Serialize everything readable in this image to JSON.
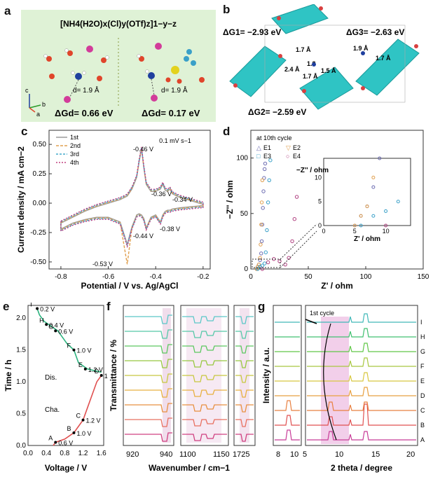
{
  "panel_labels": {
    "a": "a",
    "b": "b",
    "c": "c",
    "d": "d",
    "e": "e",
    "f": "f",
    "g": "g"
  },
  "panel_a": {
    "formula": "[NH4(H2O)x(Cl)y(OTf)z]1−y−z",
    "left": {
      "distance": "d= 1.9 Å",
      "dg": "ΔGd= 0.66 eV"
    },
    "right": {
      "distance": "d= 1.9 Å",
      "dg": "ΔGd= 0.17 eV"
    },
    "axes": {
      "c": "c",
      "b": "b",
      "a": "a"
    },
    "colors": {
      "background": "#dff2d6",
      "oxygen": "#e0452b",
      "hydrogen": "#ffffff",
      "nitrogen": "#1f3f9e",
      "chlorine": "#d23c9a",
      "sulfur": "#e3d21d",
      "fluorine": "#3aa0c8"
    }
  },
  "panel_b": {
    "dg1": "ΔG1= −2.93 eV",
    "dg2": "ΔG2= −2.59 eV",
    "dg3": "ΔG3= −2.63 eV",
    "distances": [
      "1.7 Å",
      "1.8",
      "2.4 Å",
      "1.7 Å",
      "1.5 Å",
      "1.9 Å",
      "1.7 Å"
    ],
    "colors": {
      "framework": "#2fc4c4",
      "carbonyl": "#d94040"
    }
  },
  "chart_data": [
    {
      "id": "c",
      "type": "line",
      "xlabel": "Potential / V vs. Ag/AgCl",
      "ylabel": "Current density / mA cm−2",
      "xlim": [
        -0.85,
        -0.17
      ],
      "ylim": [
        -0.56,
        0.62
      ],
      "xticks": [
        "-0.8",
        "-0.6",
        "-0.4",
        "-0.2"
      ],
      "yticks": [
        "-0.50",
        "-0.25",
        "0.00",
        "0.25",
        "0.50"
      ],
      "scan_rate": "0.1 mV s−1",
      "series": [
        {
          "name": "1st"
        },
        {
          "name": "2nd"
        },
        {
          "name": "3rd"
        },
        {
          "name": "4th"
        }
      ],
      "annotations": [
        "-0.46 V",
        "-0.36 V",
        "-0.34 V",
        "-0.44 V",
        "-0.38 V",
        "-0.53 V"
      ],
      "x": [
        -0.8,
        -0.75,
        -0.7,
        -0.65,
        -0.6,
        -0.55,
        -0.52,
        -0.5,
        -0.48,
        -0.47,
        -0.46,
        -0.45,
        -0.44,
        -0.42,
        -0.4,
        -0.38,
        -0.37,
        -0.36,
        -0.35,
        -0.34,
        -0.33,
        -0.3,
        -0.25,
        -0.2
      ],
      "anodic": [
        -0.17,
        -0.12,
        -0.07,
        -0.03,
        0.0,
        0.03,
        0.06,
        0.12,
        0.22,
        0.35,
        0.46,
        0.3,
        0.16,
        0.1,
        0.1,
        0.12,
        0.16,
        0.11,
        0.1,
        0.12,
        0.08,
        0.05,
        0.02,
        -0.01
      ],
      "cathodic": [
        -0.22,
        -0.17,
        -0.14,
        -0.12,
        -0.12,
        -0.16,
        -0.35,
        -0.2,
        -0.1,
        -0.09,
        -0.1,
        -0.13,
        -0.21,
        -0.12,
        -0.1,
        -0.16,
        -0.1,
        -0.07,
        -0.06,
        -0.06,
        -0.05,
        -0.04,
        -0.03,
        -0.02
      ],
      "colors": [
        "#9a9a9a",
        "#e0a050",
        "#44aacc",
        "#c04080"
      ]
    },
    {
      "id": "d",
      "type": "scatter",
      "xlabel": "Z' / ohm",
      "ylabel": "−Z'' / ohm",
      "xlim": [
        0,
        150
      ],
      "ylim": [
        0,
        125
      ],
      "xticks": [
        "0",
        "50",
        "100",
        "150"
      ],
      "yticks": [
        "0",
        "50",
        "100"
      ],
      "note": "at 10th cycle",
      "series": [
        {
          "name": "E1",
          "color": "#6a6ab0",
          "z_re": [
            5,
            6,
            7,
            8,
            9,
            9.5,
            10,
            10.5,
            11,
            11.5,
            12,
            12.5
          ],
          "z_im": [
            0,
            2,
            4,
            8,
            14,
            25,
            40,
            55,
            70,
            82,
            90,
            95
          ]
        },
        {
          "name": "E2",
          "color": "#e0a050",
          "z_re": [
            5,
            6,
            7,
            8,
            8.5,
            9,
            9.5,
            10
          ],
          "z_im": [
            0,
            2,
            4,
            10,
            22,
            40,
            60,
            80
          ]
        },
        {
          "name": "E3",
          "color": "#3aa0c8",
          "z_re": [
            6,
            8,
            10,
            12,
            13,
            14,
            15,
            16,
            17
          ],
          "z_im": [
            0,
            2,
            3,
            5,
            15,
            35,
            60,
            80,
            98
          ]
        },
        {
          "name": "E4",
          "color": "#b04080",
          "z_re": [
            10,
            15,
            20,
            25,
            30,
            33,
            36,
            38,
            40
          ],
          "z_im": [
            0,
            6,
            9,
            7,
            4,
            10,
            25,
            45,
            65
          ]
        }
      ],
      "inset": {
        "xlim": [
          0,
          14
        ],
        "ylim": [
          0,
          14
        ],
        "xticks": [
          "0",
          "5",
          "10"
        ],
        "yticks": [
          "0",
          "5",
          "10"
        ],
        "xlabel": "Z' / ohm",
        "ylabel": "−Z'' / ohm"
      }
    },
    {
      "id": "e",
      "type": "line",
      "xlabel": "Voltage / V",
      "ylabel": "Time / h",
      "xlim": [
        0,
        1.65
      ],
      "ylim": [
        0,
        2.2
      ],
      "xticks": [
        "0.0",
        "0.4",
        "0.8",
        "1.2",
        "1.6"
      ],
      "yticks": [
        "0.0",
        "0.5",
        "1.0",
        "1.5",
        "2.0"
      ],
      "discharge": {
        "label": "Dis.",
        "voltage": [
          1.6,
          1.3,
          1.1,
          1.0,
          0.85,
          0.75,
          0.65,
          0.55,
          0.45,
          0.35,
          0.25,
          0.2
        ],
        "time": [
          1.15,
          1.2,
          1.3,
          1.5,
          1.6,
          1.7,
          1.8,
          1.85,
          1.9,
          1.95,
          2.05,
          2.15
        ],
        "color": "#2db37f"
      },
      "charge": {
        "label": "Cha.",
        "voltage": [
          0.55,
          0.6,
          0.8,
          1.0,
          1.1,
          1.2,
          1.25,
          1.3,
          1.4,
          1.5,
          1.6
        ],
        "time": [
          0.0,
          0.05,
          0.1,
          0.2,
          0.3,
          0.4,
          0.5,
          0.6,
          0.8,
          1.0,
          1.1
        ],
        "color": "#e05050"
      },
      "points": [
        {
          "label": "A",
          "note": "0.6 V",
          "v": 0.6,
          "t": 0.05
        },
        {
          "label": "B",
          "note": "1.0 V",
          "v": 1.0,
          "t": 0.2
        },
        {
          "label": "C",
          "note": "1.2 V",
          "v": 1.2,
          "t": 0.4
        },
        {
          "label": "D",
          "note": "1.6 V",
          "v": 1.6,
          "t": 1.1
        },
        {
          "label": "E",
          "note": "1.2 V",
          "v": 1.25,
          "t": 1.2
        },
        {
          "label": "F",
          "note": "1.0 V",
          "v": 1.0,
          "t": 1.5
        },
        {
          "label": "G",
          "note": "0.6 V",
          "v": 0.6,
          "t": 1.8
        },
        {
          "label": "H",
          "note": "0.4 V",
          "v": 0.4,
          "t": 1.9
        },
        {
          "label": "I",
          "note": "0.2 V",
          "v": 0.2,
          "t": 2.15
        }
      ]
    },
    {
      "id": "f",
      "type": "line",
      "xlabel": "Wavenumber / cm−1",
      "ylabel": "Transmittance / %",
      "segments": [
        {
          "xticks": [
            "920",
            "940"
          ]
        },
        {
          "xticks": [
            "1100",
            "1150"
          ]
        },
        {
          "xticks": [
            "1725"
          ]
        }
      ],
      "curve_colors": [
        "#5bc8c8",
        "#55c8a8",
        "#5cc860",
        "#98c840",
        "#c8c840",
        "#e8b040",
        "#e89040",
        "#e87060",
        "#d04080"
      ]
    },
    {
      "id": "g",
      "type": "line",
      "xlabel": "2 theta / degree",
      "ylabel": "Intensity / a.u.",
      "xticks_left": [
        "8",
        "10"
      ],
      "xticks_right": [
        "5",
        "10",
        "15",
        "20"
      ],
      "note": "1st cycle",
      "curves": [
        {
          "name": "A",
          "color": "#c83c98"
        },
        {
          "name": "B",
          "color": "#e05050"
        },
        {
          "name": "C",
          "color": "#e88040"
        },
        {
          "name": "D",
          "color": "#e8a040"
        },
        {
          "name": "E",
          "color": "#d8c840"
        },
        {
          "name": "F",
          "color": "#a8c840"
        },
        {
          "name": "G",
          "color": "#60c848"
        },
        {
          "name": "H",
          "color": "#40c070"
        },
        {
          "name": "I",
          "color": "#40b8b8"
        }
      ]
    }
  ]
}
